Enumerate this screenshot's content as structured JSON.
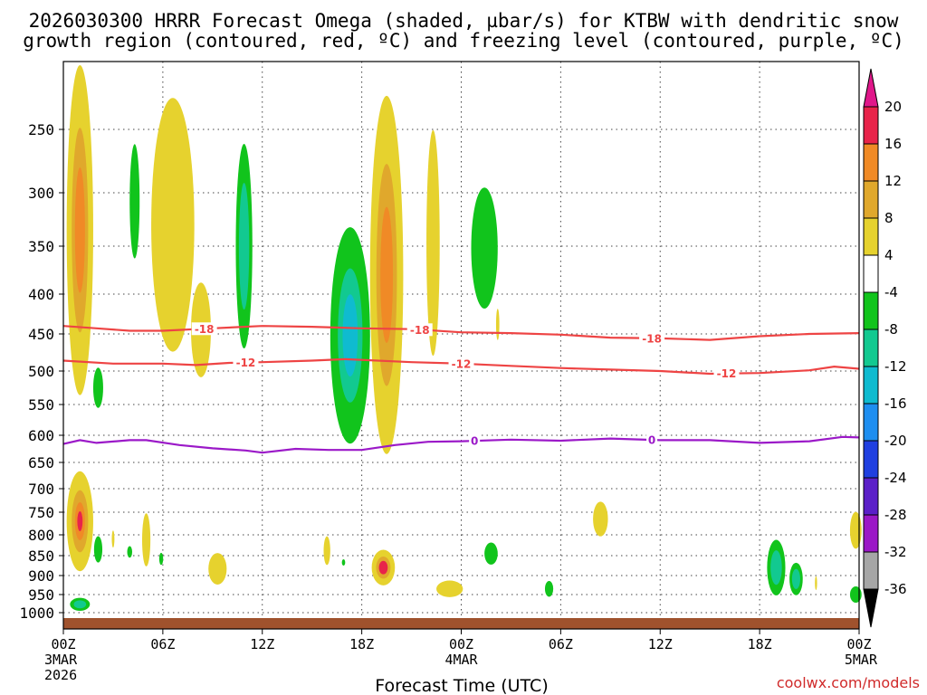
{
  "chart_data": {
    "type": "contour-timeheight",
    "title_line1": "2026030300 HRRR Forecast Omega (shaded, µbar/s) for KTBW with dendritic snow",
    "title_line2": "growth region (contoured, red, ºC) and freezing level (contoured, purple, ºC)",
    "xlabel": "Forecast Time (UTC)",
    "ylabel": "Pressure (hPa)",
    "credit": "coolwx.com/models",
    "x_range_hours": [
      0,
      48
    ],
    "y_range_hpa": [
      1025,
      200
    ],
    "x_ticks": [
      {
        "h": 0,
        "lines": [
          "00Z",
          "3MAR",
          "2026"
        ]
      },
      {
        "h": 6,
        "lines": [
          "06Z"
        ]
      },
      {
        "h": 12,
        "lines": [
          "12Z"
        ]
      },
      {
        "h": 18,
        "lines": [
          "18Z"
        ]
      },
      {
        "h": 24,
        "lines": [
          "00Z",
          "4MAR"
        ]
      },
      {
        "h": 30,
        "lines": [
          "06Z"
        ]
      },
      {
        "h": 36,
        "lines": [
          "12Z"
        ]
      },
      {
        "h": 42,
        "lines": [
          "18Z"
        ]
      },
      {
        "h": 48,
        "lines": [
          "00Z",
          "5MAR"
        ]
      }
    ],
    "y_ticks": [
      250,
      300,
      350,
      400,
      450,
      500,
      550,
      600,
      650,
      700,
      750,
      800,
      850,
      900,
      950,
      1000
    ],
    "colorbar": {
      "labels": [
        "20",
        "16",
        "12",
        "8",
        "4",
        "-4",
        "-8",
        "-12",
        "-16",
        "-20",
        "-24",
        "-28",
        "-32",
        "-36"
      ],
      "colors": [
        "#e8234a",
        "#f08a26",
        "#e0a82c",
        "#e6d22e",
        "#ffffff",
        "#11c41c",
        "#12c990",
        "#0fbbd0",
        "#1e8ef0",
        "#1f3fe0",
        "#5b1fc8",
        "#9b18c6",
        "#a6a6a6"
      ],
      "top_arrow_color": "#e0178a",
      "bottom_arrow_color": "#000000"
    },
    "series": [
      {
        "name": "-18 C isotherm",
        "color": "#ee4444",
        "label": "-18",
        "points": [
          [
            0,
            440
          ],
          [
            2,
            443
          ],
          [
            4,
            446
          ],
          [
            6,
            446
          ],
          [
            9,
            443
          ],
          [
            12,
            440
          ],
          [
            15,
            441
          ],
          [
            18,
            443
          ],
          [
            21,
            444
          ],
          [
            24,
            448
          ],
          [
            27,
            449
          ],
          [
            30,
            451
          ],
          [
            33,
            455
          ],
          [
            36,
            456
          ],
          [
            39,
            458
          ],
          [
            42,
            453
          ],
          [
            45,
            450
          ],
          [
            48,
            449
          ]
        ],
        "label_hours": [
          8.5,
          21.5,
          35.5
        ]
      },
      {
        "name": "-12 C isotherm",
        "color": "#ee4444",
        "label": "-12",
        "points": [
          [
            0,
            486
          ],
          [
            3,
            490
          ],
          [
            6,
            490
          ],
          [
            8,
            492
          ],
          [
            10,
            489
          ],
          [
            12,
            488
          ],
          [
            15,
            486
          ],
          [
            17,
            484
          ],
          [
            21,
            488
          ],
          [
            24,
            490
          ],
          [
            27,
            493
          ],
          [
            30,
            496
          ],
          [
            33,
            498
          ],
          [
            36,
            500
          ],
          [
            39,
            504
          ],
          [
            42,
            503
          ],
          [
            45,
            499
          ],
          [
            46.5,
            494
          ],
          [
            48,
            497
          ]
        ],
        "label_hours": [
          11,
          24,
          40
        ]
      },
      {
        "name": "0 C freezing level",
        "color": "#9b19c8",
        "label": "0",
        "points": [
          [
            0,
            616
          ],
          [
            1,
            609
          ],
          [
            2,
            614
          ],
          [
            4,
            609
          ],
          [
            5,
            609
          ],
          [
            7,
            618
          ],
          [
            9,
            624
          ],
          [
            11,
            628
          ],
          [
            12,
            632
          ],
          [
            14,
            625
          ],
          [
            16,
            627
          ],
          [
            18,
            627
          ],
          [
            20,
            618
          ],
          [
            22,
            612
          ],
          [
            24,
            611
          ],
          [
            27,
            608
          ],
          [
            30,
            610
          ],
          [
            33,
            606
          ],
          [
            36,
            609
          ],
          [
            39,
            609
          ],
          [
            42,
            614
          ],
          [
            45,
            611
          ],
          [
            47,
            603
          ],
          [
            48,
            604
          ]
        ],
        "label_hours": [
          24.8,
          35.5
        ]
      }
    ],
    "shaded_regions": [
      {
        "id": "a1",
        "h": 1.0,
        "p": 335,
        "dh": 0.8,
        "dp": 205,
        "levels": [
          "yellow",
          "tan",
          "orange"
        ]
      },
      {
        "id": "a2",
        "h": 4.3,
        "p": 308,
        "dh": 0.3,
        "dp": 50,
        "levels": [
          "green"
        ]
      },
      {
        "id": "a3",
        "h": 6.6,
        "p": 330,
        "dh": 1.3,
        "dp": 120,
        "levels": [
          "yellow"
        ]
      },
      {
        "id": "a4",
        "h": 8.3,
        "p": 445,
        "dh": 0.6,
        "dp": 60,
        "levels": [
          "yellow"
        ]
      },
      {
        "id": "a5",
        "h": 10.9,
        "p": 350,
        "dh": 0.5,
        "dp": 100,
        "levels": [
          "green",
          "teal"
        ]
      },
      {
        "id": "a6",
        "h": 17.3,
        "p": 452,
        "dh": 1.2,
        "dp": 135,
        "levels": [
          "green",
          "teal",
          "cyan"
        ]
      },
      {
        "id": "a7",
        "h": 19.5,
        "p": 380,
        "dh": 1.0,
        "dp": 205,
        "levels": [
          "yellow",
          "tan",
          "orange"
        ]
      },
      {
        "id": "a8",
        "h": 22.3,
        "p": 347,
        "dh": 0.4,
        "dp": 110,
        "levels": [
          "yellow"
        ]
      },
      {
        "id": "a9",
        "h": 25.4,
        "p": 352,
        "dh": 0.8,
        "dp": 60,
        "levels": [
          "green"
        ]
      },
      {
        "id": "a10",
        "h": 26.2,
        "p": 438,
        "dh": 0.1,
        "dp": 20,
        "levels": [
          "yellow"
        ]
      },
      {
        "id": "a11",
        "h": 2.1,
        "p": 525,
        "dh": 0.3,
        "dp": 30,
        "levels": [
          "green"
        ]
      },
      {
        "id": "b1",
        "h": 1.0,
        "p": 770,
        "dh": 0.8,
        "dp": 110,
        "levels": [
          "yellow",
          "tan",
          "orange",
          "red"
        ]
      },
      {
        "id": "b2",
        "h": 1.0,
        "p": 977,
        "dh": 0.6,
        "dp": 18,
        "levels": [
          "green",
          "teal"
        ]
      },
      {
        "id": "b3",
        "h": 2.1,
        "p": 835,
        "dh": 0.25,
        "dp": 32,
        "levels": [
          "green"
        ]
      },
      {
        "id": "b4",
        "h": 3.0,
        "p": 810,
        "dh": 0.08,
        "dp": 20,
        "levels": [
          "yellow"
        ]
      },
      {
        "id": "b5",
        "h": 4.0,
        "p": 841,
        "dh": 0.15,
        "dp": 14,
        "levels": [
          "green"
        ]
      },
      {
        "id": "b6",
        "h": 5.0,
        "p": 812,
        "dh": 0.25,
        "dp": 62,
        "levels": [
          "yellow"
        ]
      },
      {
        "id": "b7",
        "h": 5.9,
        "p": 858,
        "dh": 0.12,
        "dp": 15,
        "levels": [
          "green"
        ]
      },
      {
        "id": "b8",
        "h": 9.3,
        "p": 883,
        "dh": 0.55,
        "dp": 40,
        "levels": [
          "yellow"
        ]
      },
      {
        "id": "b9",
        "h": 15.9,
        "p": 838,
        "dh": 0.2,
        "dp": 35,
        "levels": [
          "yellow"
        ]
      },
      {
        "id": "b10",
        "h": 16.9,
        "p": 867,
        "dh": 0.1,
        "dp": 8,
        "levels": [
          "green"
        ]
      },
      {
        "id": "b11",
        "h": 19.3,
        "p": 880,
        "dh": 0.7,
        "dp": 45,
        "levels": [
          "yellow",
          "tan",
          "red"
        ]
      },
      {
        "id": "b12",
        "h": 23.3,
        "p": 935,
        "dh": 0.8,
        "dp": 22,
        "levels": [
          "yellow"
        ]
      },
      {
        "id": "b13",
        "h": 25.8,
        "p": 845,
        "dh": 0.4,
        "dp": 27,
        "levels": [
          "green"
        ]
      },
      {
        "id": "b14",
        "h": 29.3,
        "p": 935,
        "dh": 0.25,
        "dp": 21,
        "levels": [
          "green"
        ]
      },
      {
        "id": "b15",
        "h": 32.4,
        "p": 765,
        "dh": 0.45,
        "dp": 38,
        "levels": [
          "yellow"
        ]
      },
      {
        "id": "b16",
        "h": 43.0,
        "p": 880,
        "dh": 0.55,
        "dp": 70,
        "levels": [
          "green",
          "teal"
        ]
      },
      {
        "id": "b17",
        "h": 44.2,
        "p": 909,
        "dh": 0.4,
        "dp": 42,
        "levels": [
          "green",
          "teal"
        ]
      },
      {
        "id": "b18",
        "h": 45.4,
        "p": 920,
        "dh": 0.06,
        "dp": 18,
        "levels": [
          "yellow"
        ]
      },
      {
        "id": "b19",
        "h": 47.8,
        "p": 790,
        "dh": 0.35,
        "dp": 42,
        "levels": [
          "yellow"
        ]
      },
      {
        "id": "b20",
        "h": 47.8,
        "p": 950,
        "dh": 0.35,
        "dp": 22,
        "levels": [
          "green"
        ]
      }
    ],
    "level_colors": {
      "yellow": "#e6d22e",
      "tan": "#e0a82c",
      "orange": "#f08a26",
      "red": "#e8234a",
      "green": "#11c41c",
      "teal": "#12c990",
      "cyan": "#0fbbd0"
    },
    "surface_color": "#a0522d"
  }
}
